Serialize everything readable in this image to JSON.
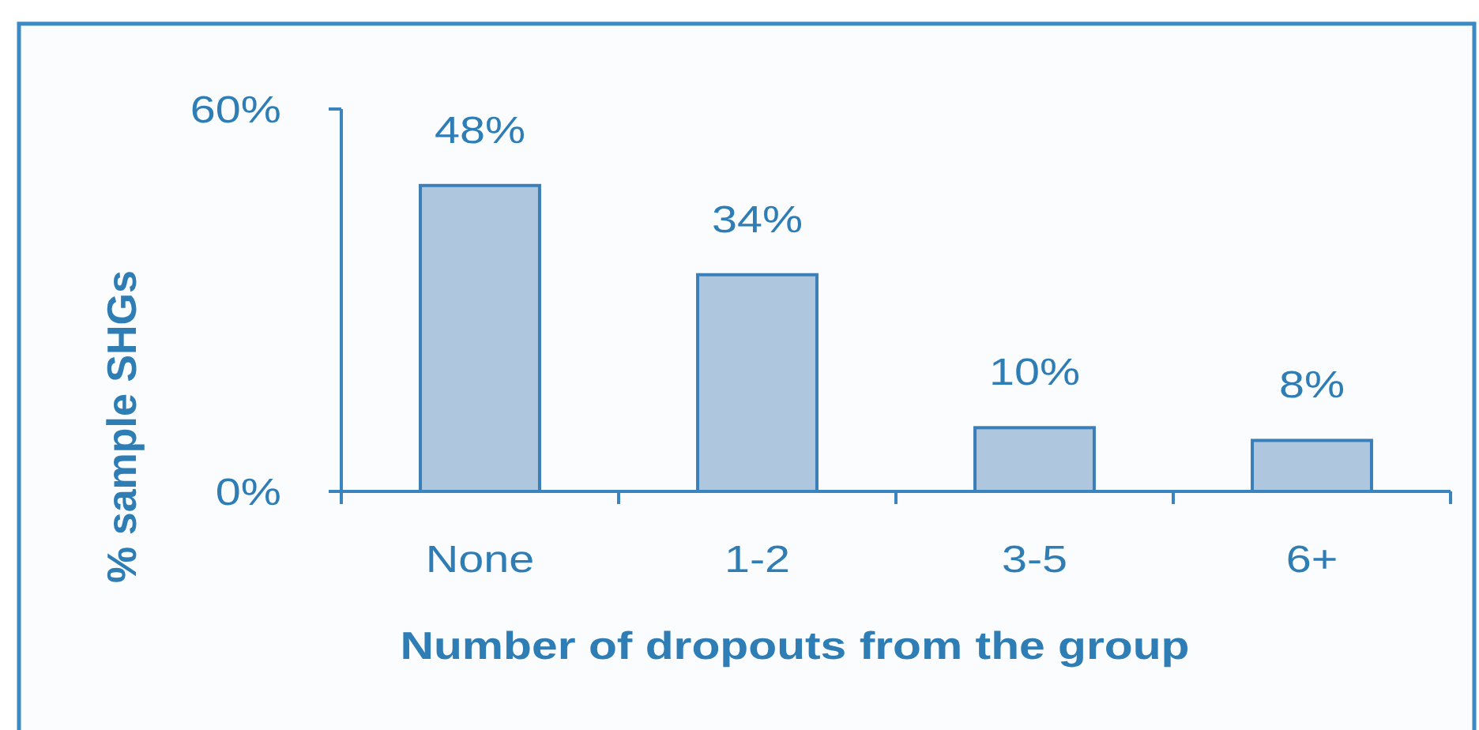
{
  "chart_data": {
    "type": "bar",
    "xlabel": "Number of dropouts from the group",
    "ylabel": "% sample SHGs",
    "categories": [
      "None",
      "1-2",
      "3-5",
      "6+"
    ],
    "values": [
      48,
      34,
      10,
      8
    ],
    "color": "#afc7de",
    "ylim": [
      0,
      60
    ],
    "yticks": [
      {
        "value": 0,
        "label": "0%"
      },
      {
        "value": 60,
        "label": "60%"
      }
    ],
    "value_labels": [
      "48%",
      "34%",
      "10%",
      "8%"
    ]
  }
}
